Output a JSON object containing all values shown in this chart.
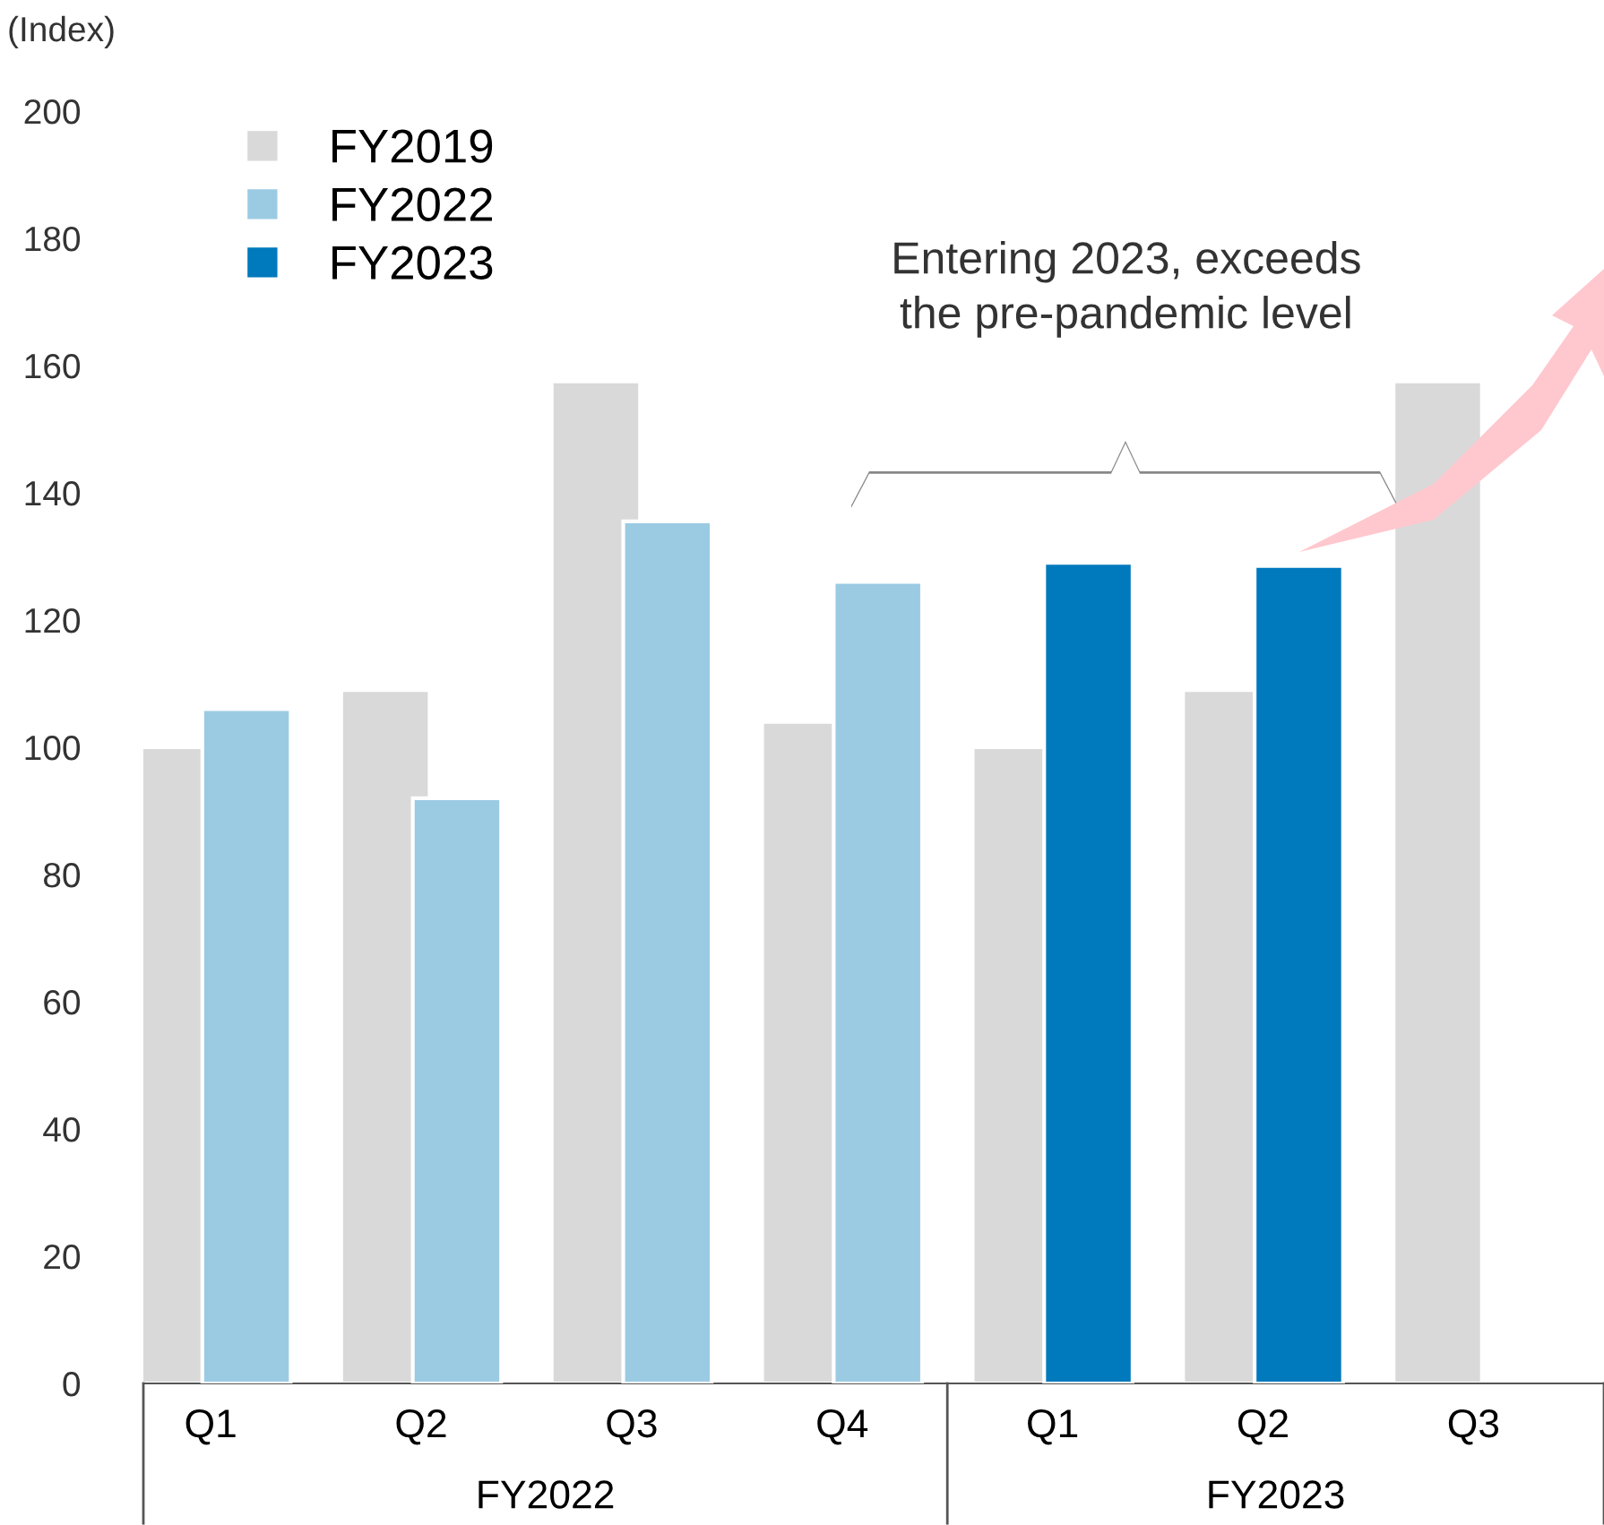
{
  "chart_data": {
    "type": "bar",
    "ylabel": "(Index)",
    "categories": [
      "Q1",
      "Q2",
      "Q3",
      "Q4",
      "Q1",
      "Q2",
      "Q3"
    ],
    "series": [
      {
        "name": "FY2019",
        "color": "#d9d9d9",
        "values": [
          100,
          109,
          157.5,
          104,
          100,
          109,
          157.5
        ]
      },
      {
        "name": "FY2022",
        "color": "#9bcbe3",
        "values": [
          106,
          92,
          135.5,
          126,
          null,
          null,
          null
        ]
      },
      {
        "name": "FY2023",
        "color": "#0079bd",
        "values": [
          null,
          null,
          null,
          null,
          129,
          128.5,
          null
        ]
      }
    ],
    "ylim": [
      0,
      200
    ],
    "yticks": [
      0,
      20,
      40,
      60,
      80,
      100,
      120,
      140,
      160,
      180,
      200
    ],
    "grid": false,
    "legend": "top left",
    "annotations": [
      "FY2022",
      "FY2023",
      "Entering 2023, exceeds\nthe pre-pandemic level"
    ]
  }
}
